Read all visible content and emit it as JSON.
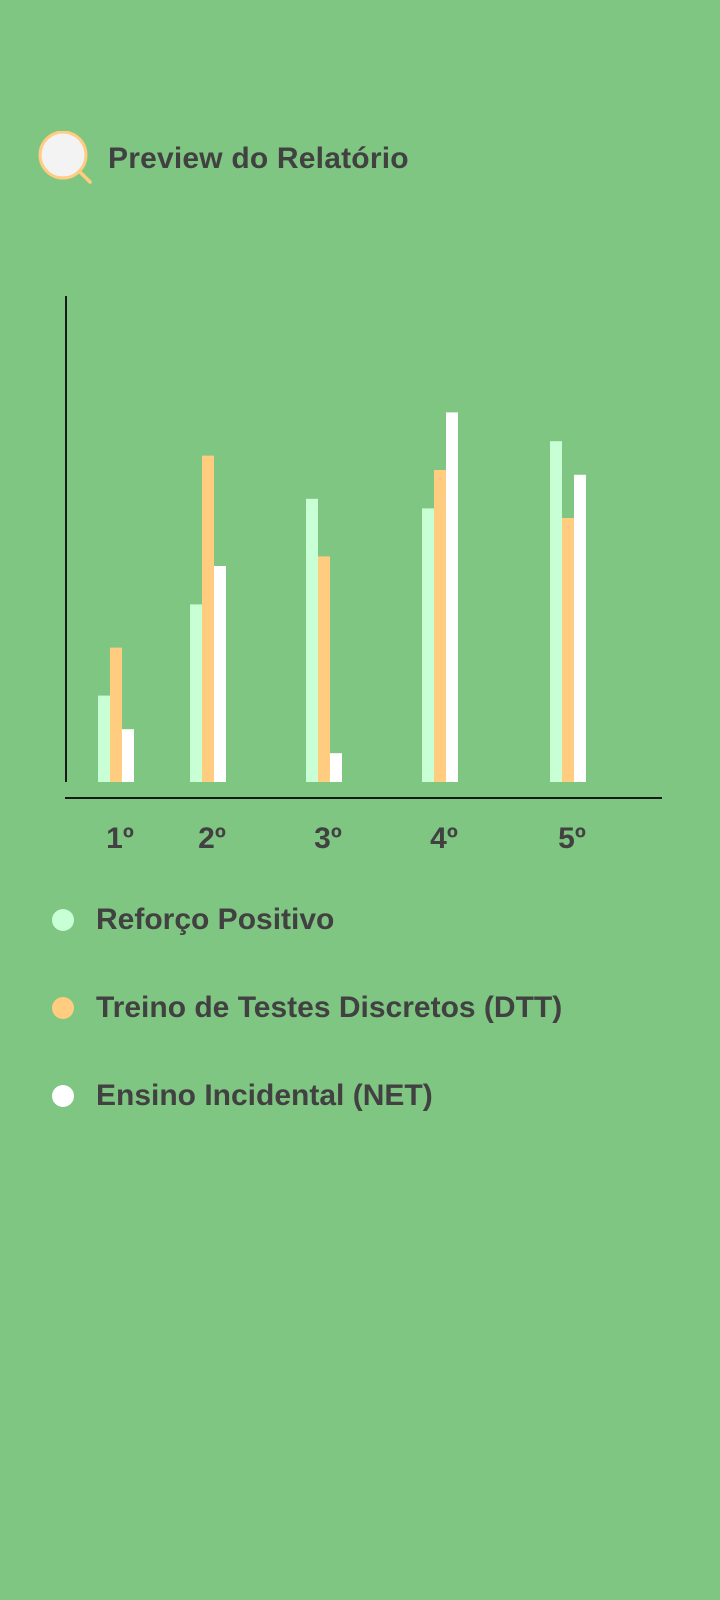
{
  "header": {
    "title": "Preview do Relatório",
    "icon": "search-icon"
  },
  "colors": {
    "background": "#80c683",
    "text": "#414141",
    "icon_ring": "#ffcc80",
    "icon_fill": "#f3f3f3"
  },
  "chart_data": {
    "type": "bar",
    "categories": [
      "1º",
      "2º",
      "3º",
      "4º",
      "5º"
    ],
    "series": [
      {
        "name": "Reforço Positivo",
        "color": "#c8ffd4",
        "values": [
          18,
          37,
          59,
          57,
          71
        ]
      },
      {
        "name": "Treino de Testes Discretos (DTT)",
        "color": "#ffcc80",
        "values": [
          28,
          68,
          47,
          65,
          55
        ]
      },
      {
        "name": "Ensino Incidental (NET)",
        "color": "#ffffff",
        "values": [
          11,
          45,
          6,
          77,
          64
        ]
      }
    ],
    "ylim": [
      0,
      100
    ],
    "grid": false,
    "legend_position": "bottom"
  }
}
